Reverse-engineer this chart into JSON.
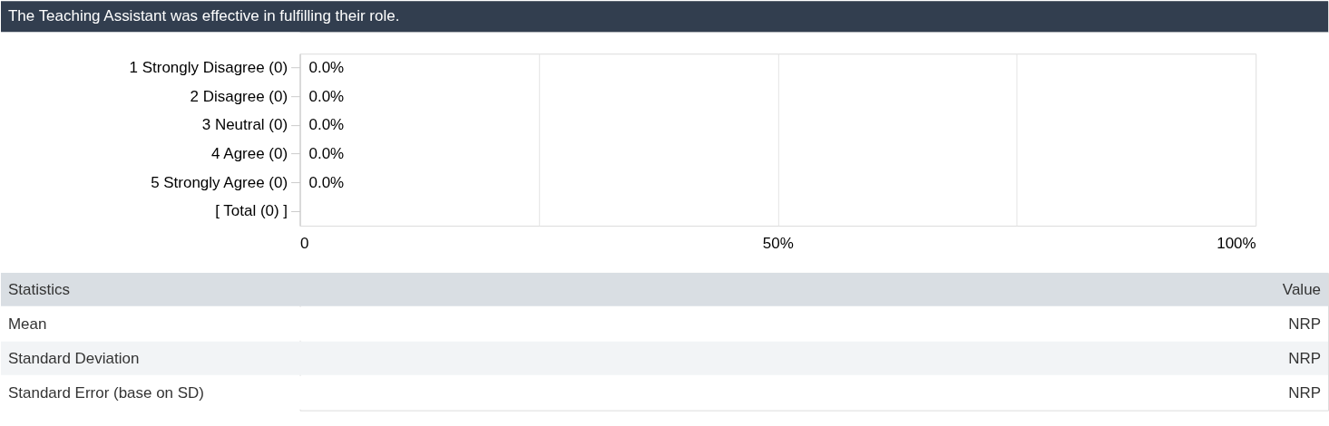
{
  "chart_data": {
    "type": "bar",
    "orientation": "horizontal",
    "title": "The Teaching Assistant was effective in fulfilling their role.",
    "categories": [
      "1 Strongly Disagree (0)",
      "2 Disagree (0)",
      "3 Neutral (0)",
      "4 Agree (0)",
      "5 Strongly Agree (0)",
      "[ Total (0) ]"
    ],
    "values": [
      0,
      0,
      0,
      0,
      0,
      null
    ],
    "value_labels": [
      "0.0%",
      "0.0%",
      "0.0%",
      "0.0%",
      "0.0%",
      null
    ],
    "xlim": [
      0,
      100
    ],
    "xticks": [
      {
        "value": 0,
        "label": "0"
      },
      {
        "value": 25,
        "label": null
      },
      {
        "value": 50,
        "label": "50%"
      },
      {
        "value": 75,
        "label": null
      },
      {
        "value": 100,
        "label": "100%"
      }
    ],
    "grid": "x",
    "annotations": [
      "Statistics",
      "Value",
      "Mean",
      "NRP",
      "Standard Deviation",
      "NRP",
      "Standard Error (base on SD)",
      "NRP"
    ]
  }
}
